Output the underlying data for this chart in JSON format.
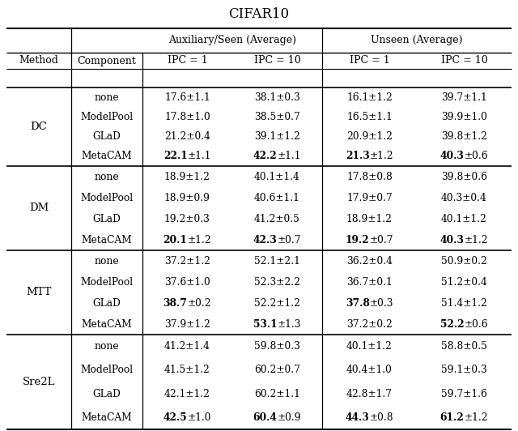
{
  "title": "CIFAR10",
  "methods": [
    "DC",
    "DM",
    "MTT",
    "Sre2L"
  ],
  "rows": {
    "DC": [
      [
        "none",
        "17.6±1.1",
        "38.1±0.3",
        "16.1±1.2",
        "39.7±1.1"
      ],
      [
        "ModelPool",
        "17.8±1.0",
        "38.5±0.7",
        "16.5±1.1",
        "39.9±1.0"
      ],
      [
        "GLaD",
        "21.2±0.4",
        "39.1±1.2",
        "20.9±1.2",
        "39.8±1.2"
      ],
      [
        "MetaCAM",
        "22.1±1.1",
        "42.2±1.1",
        "21.3±1.2",
        "40.3±0.6"
      ]
    ],
    "DM": [
      [
        "none",
        "18.9±1.2",
        "40.1±1.4",
        "17.8±0.8",
        "39.8±0.6"
      ],
      [
        "ModelPool",
        "18.9±0.9",
        "40.6±1.1",
        "17.9±0.7",
        "40.3±0.4"
      ],
      [
        "GLaD",
        "19.2±0.3",
        "41.2±0.5",
        "18.9±1.2",
        "40.1±1.2"
      ],
      [
        "MetaCAM",
        "20.1±1.2",
        "42.3±0.7",
        "19.2±0.7",
        "40.3±1.2"
      ]
    ],
    "MTT": [
      [
        "none",
        "37.2±1.2",
        "52.1±2.1",
        "36.2±0.4",
        "50.9±0.2"
      ],
      [
        "ModelPool",
        "37.6±1.0",
        "52.3±2.2",
        "36.7±0.1",
        "51.2±0.4"
      ],
      [
        "GLaD",
        "38.7±0.2",
        "52.2±1.2",
        "37.8±0.3",
        "51.4±1.2"
      ],
      [
        "MetaCAM",
        "37.9±1.2",
        "53.1±1.3",
        "37.2±0.2",
        "52.2±0.6"
      ]
    ],
    "Sre2L": [
      [
        "none",
        "41.2±1.4",
        "59.8±0.3",
        "40.1±1.2",
        "58.8±0.5"
      ],
      [
        "ModelPool",
        "41.5±1.2",
        "60.2±0.7",
        "40.4±1.0",
        "59.1±0.3"
      ],
      [
        "GLaD",
        "42.1±1.2",
        "60.2±1.1",
        "42.8±1.7",
        "59.7±1.6"
      ],
      [
        "MetaCAM",
        "42.5±1.0",
        "60.4±0.9",
        "44.3±0.8",
        "61.2±1.2"
      ]
    ]
  },
  "bold": {
    "DC": [
      [
        false,
        false,
        false,
        false,
        false
      ],
      [
        false,
        false,
        false,
        false,
        false
      ],
      [
        false,
        false,
        false,
        false,
        false
      ],
      [
        false,
        true,
        true,
        true,
        true
      ]
    ],
    "DM": [
      [
        false,
        false,
        false,
        false,
        false
      ],
      [
        false,
        false,
        false,
        false,
        false
      ],
      [
        false,
        false,
        false,
        false,
        false
      ],
      [
        false,
        true,
        true,
        true,
        true
      ]
    ],
    "MTT": [
      [
        false,
        false,
        false,
        false,
        false
      ],
      [
        false,
        false,
        false,
        false,
        false
      ],
      [
        false,
        true,
        false,
        true,
        false
      ],
      [
        false,
        false,
        true,
        false,
        true
      ]
    ],
    "Sre2L": [
      [
        false,
        false,
        false,
        false,
        false
      ],
      [
        false,
        false,
        false,
        false,
        false
      ],
      [
        false,
        false,
        false,
        false,
        false
      ],
      [
        false,
        true,
        true,
        true,
        true
      ]
    ]
  },
  "fig_width": 6.4,
  "fig_height": 5.32,
  "dpi": 100
}
